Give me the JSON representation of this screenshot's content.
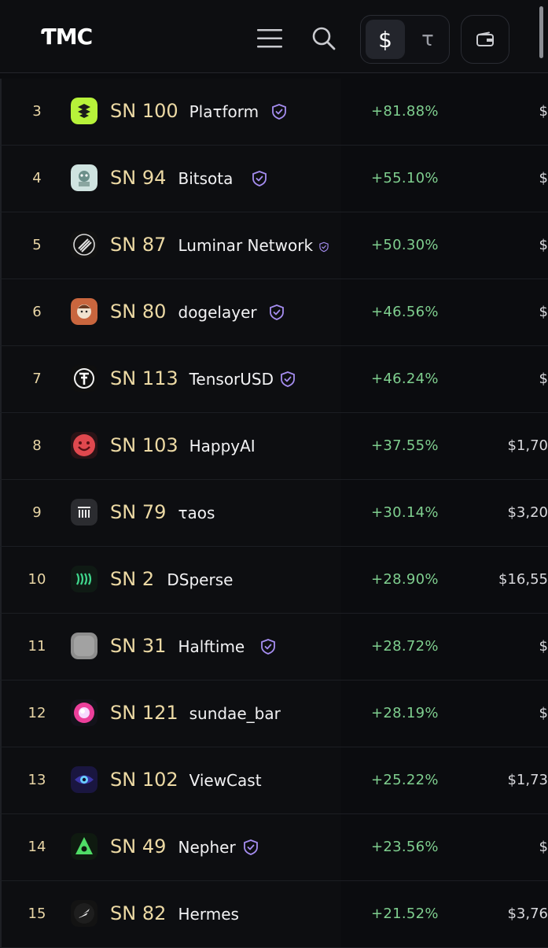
{
  "header": {
    "logo": "ƬMC",
    "currency_usd": "$",
    "currency_tao": "τ",
    "menu_icon": "hamburger-menu-icon",
    "search_icon": "search-icon",
    "wallet_icon": "wallet-icon"
  },
  "colors": {
    "background": "#0b0c0f",
    "rank": "#e9d6a6",
    "subnet_id": "#ecd9a4",
    "positive_change": "#7fcf8f",
    "verified_badge": "#a58df0"
  },
  "rows": [
    {
      "rank": "3",
      "sn": "SN 100",
      "name": "Plaτform",
      "verified": true,
      "change": "+81.88%",
      "price": "$",
      "icon": "platform-logo-icon"
    },
    {
      "rank": "4",
      "sn": "SN 94",
      "name": "Bitsota",
      "verified": true,
      "change": "+55.10%",
      "price": "$",
      "icon": "bitsota-logo-icon"
    },
    {
      "rank": "5",
      "sn": "SN 87",
      "name": "Luminar Network",
      "verified": true,
      "change": "+50.30%",
      "price": "$",
      "icon": "luminar-logo-icon"
    },
    {
      "rank": "6",
      "sn": "SN 80",
      "name": "dogelayer",
      "verified": true,
      "change": "+46.56%",
      "price": "$",
      "icon": "dogelayer-logo-icon"
    },
    {
      "rank": "7",
      "sn": "SN 113",
      "name": "TensorUSD",
      "verified": true,
      "change": "+46.24%",
      "price": "$",
      "icon": "tensorusd-logo-icon"
    },
    {
      "rank": "8",
      "sn": "SN 103",
      "name": "HappyAI",
      "verified": false,
      "change": "+37.55%",
      "price": "$1,70",
      "icon": "happyai-logo-icon"
    },
    {
      "rank": "9",
      "sn": "SN 79",
      "name": "τaos",
      "verified": false,
      "change": "+30.14%",
      "price": "$3,20",
      "icon": "taos-logo-icon"
    },
    {
      "rank": "10",
      "sn": "SN 2",
      "name": "DSperse",
      "verified": false,
      "change": "+28.90%",
      "price": "$16,55",
      "icon": "dsperse-logo-icon"
    },
    {
      "rank": "11",
      "sn": "SN 31",
      "name": "Halftime",
      "verified": true,
      "change": "+28.72%",
      "price": "$",
      "icon": "halftime-logo-icon"
    },
    {
      "rank": "12",
      "sn": "SN 121",
      "name": "sundae_bar",
      "verified": false,
      "change": "+28.19%",
      "price": "$",
      "icon": "sundae-bar-logo-icon"
    },
    {
      "rank": "13",
      "sn": "SN 102",
      "name": "ViewCast",
      "verified": false,
      "change": "+25.22%",
      "price": "$1,73",
      "icon": "viewcast-logo-icon"
    },
    {
      "rank": "14",
      "sn": "SN 49",
      "name": "Nepher",
      "verified": true,
      "change": "+23.56%",
      "price": "$",
      "icon": "nepher-logo-icon"
    },
    {
      "rank": "15",
      "sn": "SN 82",
      "name": "Hermes",
      "verified": false,
      "change": "+21.52%",
      "price": "$3,76",
      "icon": "hermes-logo-icon"
    }
  ]
}
